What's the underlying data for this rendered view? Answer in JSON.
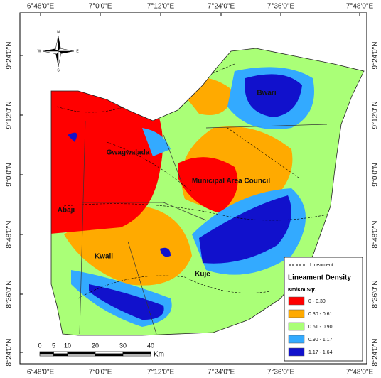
{
  "map": {
    "longitude_labels": [
      "6°48'0\"E",
      "7°0'0\"E",
      "7°12'0\"E",
      "7°24'0\"E",
      "7°36'0\"E",
      "7°48'0\"E"
    ],
    "latitude_labels": [
      "9°24'0\"N",
      "9°12'0\"N",
      "9°0'0\"N",
      "8°48'0\"N",
      "8°36'0\"N",
      "8°24'0\"N"
    ],
    "compass": [
      "N",
      "E",
      "S",
      "W"
    ],
    "regions": [
      "Bwari",
      "Gwagwalada",
      "Municipal Area Council",
      "Abaji",
      "Kwali",
      "Kuje"
    ],
    "legend": {
      "line_label": "Lineament",
      "title": "Lineament Density",
      "unit": "Km/Km Sqr.",
      "classes": [
        {
          "label": "0 - 0.30",
          "color": "#ff0000"
        },
        {
          "label": "0.30 - 0.61",
          "color": "#ffaa00"
        },
        {
          "label": "0.61 - 0.90",
          "color": "#aaff77"
        },
        {
          "label": "0.90 - 1.17",
          "color": "#33aaff"
        },
        {
          "label": "1.17 - 1.64",
          "color": "#1111cc"
        }
      ]
    },
    "scale_bar": {
      "ticks": [
        0,
        5,
        10,
        20,
        30,
        40
      ],
      "unit": "Km"
    }
  }
}
